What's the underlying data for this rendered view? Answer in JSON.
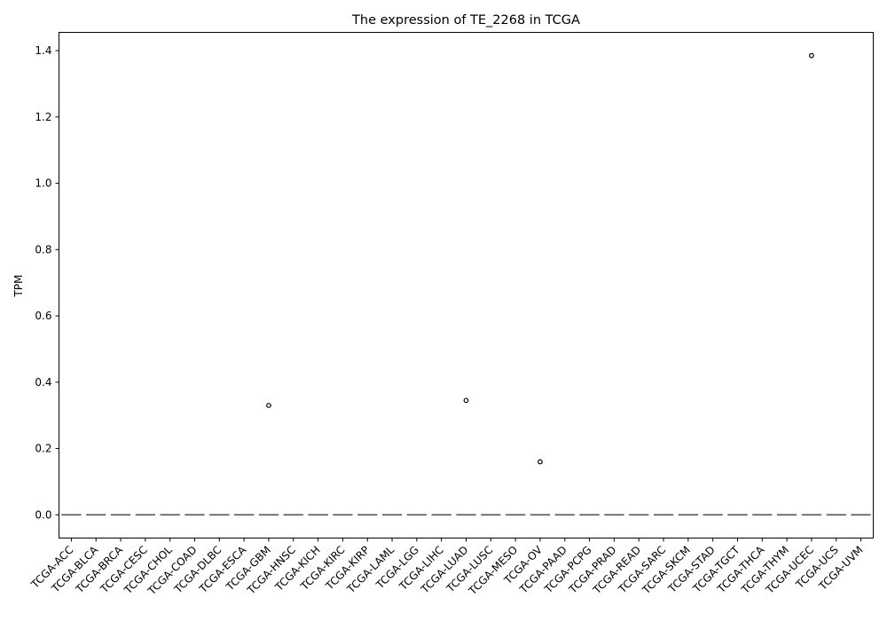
{
  "chart_data": {
    "type": "box",
    "title": "The expression of TE_2268 in TCGA",
    "xlabel": "",
    "ylabel": "TPM",
    "ylim": [
      -0.07,
      1.455
    ],
    "yticks": [
      0.0,
      0.2,
      0.4,
      0.6,
      0.8,
      1.0,
      1.2,
      1.4
    ],
    "ytick_labels": [
      "0.0",
      "0.2",
      "0.4",
      "0.6",
      "0.8",
      "1.0",
      "1.2",
      "1.4"
    ],
    "grid": false,
    "legend": "none",
    "categories": [
      "TCGA-ACC",
      "TCGA-BLCA",
      "TCGA-BRCA",
      "TCGA-CESC",
      "TCGA-CHOL",
      "TCGA-COAD",
      "TCGA-DLBC",
      "TCGA-ESCA",
      "TCGA-GBM",
      "TCGA-HNSC",
      "TCGA-KICH",
      "TCGA-KIRC",
      "TCGA-KIRP",
      "TCGA-LAML",
      "TCGA-LGG",
      "TCGA-LIHC",
      "TCGA-LUAD",
      "TCGA-LUSC",
      "TCGA-MESO",
      "TCGA-OV",
      "TCGA-PAAD",
      "TCGA-PCPG",
      "TCGA-PRAD",
      "TCGA-READ",
      "TCGA-SARC",
      "TCGA-SKCM",
      "TCGA-STAD",
      "TCGA-TGCT",
      "TCGA-THCA",
      "TCGA-THYM",
      "TCGA-UCEC",
      "TCGA-UCS",
      "TCGA-UVM"
    ],
    "median": [
      0,
      0,
      0,
      0,
      0,
      0,
      0,
      0,
      0,
      0,
      0,
      0,
      0,
      0,
      0,
      0,
      0,
      0,
      0,
      0,
      0,
      0,
      0,
      0,
      0,
      0,
      0,
      0,
      0,
      0,
      0,
      0,
      0
    ],
    "outliers": [
      {
        "category": "TCGA-GBM",
        "value": 0.33
      },
      {
        "category": "TCGA-LUAD",
        "value": 0.345
      },
      {
        "category": "TCGA-OV",
        "value": 0.16
      },
      {
        "category": "TCGA-UCEC",
        "value": 1.385
      }
    ],
    "colors": {
      "box_line": "#555555",
      "outlier_edge": "#000000",
      "axis": "#000000"
    }
  }
}
